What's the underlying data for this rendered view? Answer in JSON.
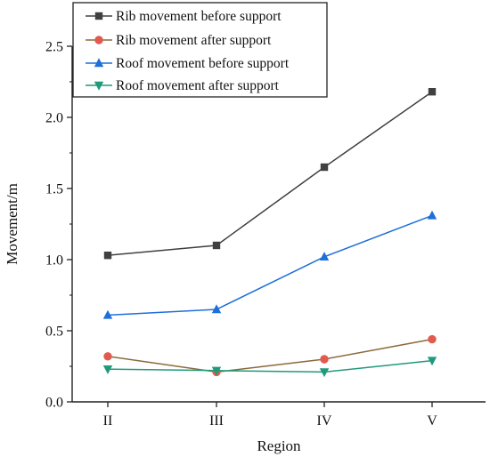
{
  "chart_data": {
    "type": "line",
    "xlabel": "Region",
    "ylabel": "Movement/m",
    "categories": [
      "II",
      "III",
      "IV",
      "V"
    ],
    "ylim": [
      0,
      2.5
    ],
    "yticks": [
      "0.0",
      "0.5",
      "1.0",
      "1.5",
      "2.0",
      "2.5"
    ],
    "grid": false,
    "legend_position": "top-left",
    "series": [
      {
        "name": "Rib movement before support",
        "values": [
          1.03,
          1.1,
          1.65,
          2.18
        ],
        "color": "#404040",
        "marker": "square"
      },
      {
        "name": "Rib movement after support",
        "values": [
          0.32,
          0.21,
          0.3,
          0.44
        ],
        "color": "#e05a4f",
        "line_color": "#8a6a3a",
        "marker": "circle"
      },
      {
        "name": "Roof movement before support",
        "values": [
          0.61,
          0.65,
          1.02,
          1.31
        ],
        "color": "#1e6fd9",
        "marker": "triangle-up"
      },
      {
        "name": "Roof movement after support",
        "values": [
          0.23,
          0.22,
          0.21,
          0.29
        ],
        "color": "#1f9a7a",
        "marker": "triangle-down"
      }
    ]
  }
}
